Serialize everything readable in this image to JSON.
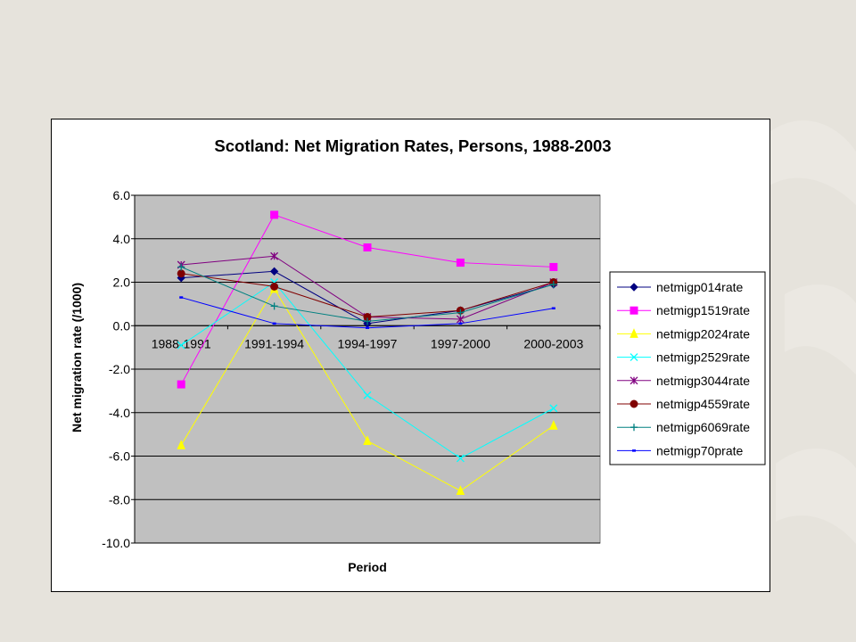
{
  "chart_data": {
    "type": "line",
    "title": "Scotland: Net Migration Rates, Persons, 1988-2003",
    "xlabel": "Period",
    "ylabel": "Net migration rate (/1000)",
    "ylim": [
      -10,
      6
    ],
    "yticks": [
      "6.0",
      "4.0",
      "2.0",
      "0.0",
      "-2.0",
      "-4.0",
      "-6.0",
      "-8.0",
      "-10.0"
    ],
    "ytick_values": [
      6,
      4,
      2,
      0,
      -2,
      -4,
      -6,
      -8,
      -10
    ],
    "grid": true,
    "legend_position": "right",
    "plot_background": "#c0c0c0",
    "categories": [
      "1988-1991",
      "1991-1994",
      "1994-1997",
      "1997-2000",
      "2000-2003"
    ],
    "series": [
      {
        "name": "netmigp014rate",
        "color": "#000080",
        "marker": "diamond",
        "values": [
          2.2,
          2.5,
          0.1,
          0.7,
          1.9
        ]
      },
      {
        "name": "netmigp1519rate",
        "color": "#ff00ff",
        "marker": "square",
        "values": [
          -2.7,
          5.1,
          3.6,
          2.9,
          2.7
        ]
      },
      {
        "name": "netmigp2024rate",
        "color": "#ffff00",
        "marker": "triangle",
        "values": [
          -5.5,
          1.7,
          -5.3,
          -7.6,
          -4.6
        ]
      },
      {
        "name": "netmigp2529rate",
        "color": "#00ffff",
        "marker": "x",
        "values": [
          -0.9,
          2.0,
          -3.2,
          -6.1,
          -3.8
        ]
      },
      {
        "name": "netmigp3044rate",
        "color": "#800080",
        "marker": "star",
        "values": [
          2.8,
          3.2,
          0.4,
          0.3,
          2.0
        ]
      },
      {
        "name": "netmigp4559rate",
        "color": "#800000",
        "marker": "circle",
        "values": [
          2.4,
          1.8,
          0.4,
          0.7,
          2.0
        ]
      },
      {
        "name": "netmigp6069rate",
        "color": "#008080",
        "marker": "plus",
        "values": [
          2.7,
          0.9,
          0.2,
          0.6,
          1.9
        ]
      },
      {
        "name": "netmigp70prate",
        "color": "#0000ff",
        "marker": "dash",
        "values": [
          1.3,
          0.1,
          -0.1,
          0.1,
          0.8
        ]
      }
    ]
  }
}
